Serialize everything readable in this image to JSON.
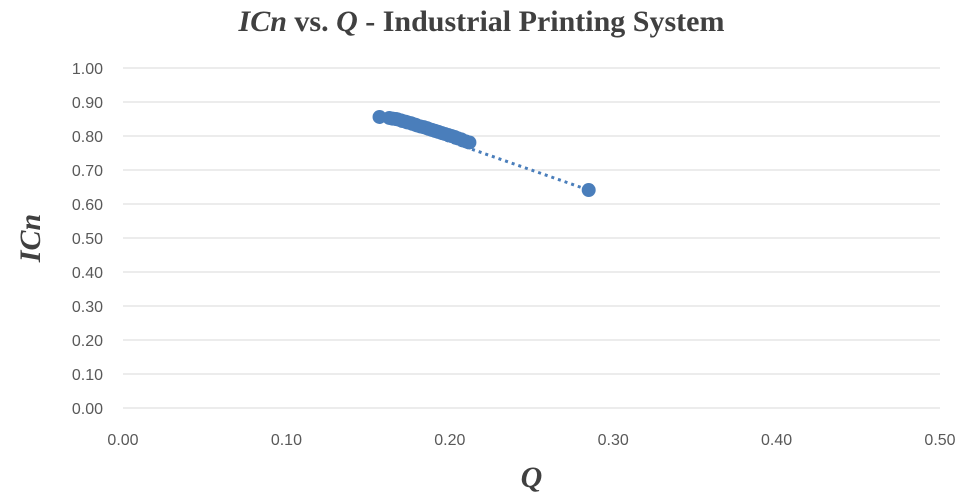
{
  "chart_data": {
    "type": "scatter",
    "title": {
      "x_symbol": "ICn",
      "vs": " vs. ",
      "y_symbol": "Q",
      "suffix": " - Industrial Printing System"
    },
    "xlabel": "Q",
    "ylabel": "ICn",
    "xlim": [
      0,
      0.5
    ],
    "ylim": [
      0,
      1
    ],
    "x_ticks": [
      "0.00",
      "0.10",
      "0.20",
      "0.30",
      "0.40",
      "0.50"
    ],
    "y_ticks": [
      "0.00",
      "0.10",
      "0.20",
      "0.30",
      "0.40",
      "0.50",
      "0.60",
      "0.70",
      "0.80",
      "0.90",
      "1.00"
    ],
    "grid": "horizontal",
    "marker_color": "#4a7ebb",
    "trendline": {
      "style": "dotted",
      "color": "#4a7ebb",
      "points": [
        [
          0.157,
          0.856
        ],
        [
          0.285,
          0.641
        ]
      ]
    },
    "points": [
      [
        0.157,
        0.856
      ],
      [
        0.163,
        0.853
      ],
      [
        0.165,
        0.851
      ],
      [
        0.167,
        0.85
      ],
      [
        0.168,
        0.849
      ],
      [
        0.17,
        0.846
      ],
      [
        0.171,
        0.844
      ],
      [
        0.173,
        0.842
      ],
      [
        0.174,
        0.84
      ],
      [
        0.176,
        0.838
      ],
      [
        0.177,
        0.836
      ],
      [
        0.179,
        0.833
      ],
      [
        0.18,
        0.831
      ],
      [
        0.182,
        0.828
      ],
      [
        0.184,
        0.826
      ],
      [
        0.186,
        0.823
      ],
      [
        0.187,
        0.821
      ],
      [
        0.189,
        0.818
      ],
      [
        0.191,
        0.815
      ],
      [
        0.193,
        0.812
      ],
      [
        0.195,
        0.809
      ],
      [
        0.197,
        0.806
      ],
      [
        0.199,
        0.803
      ],
      [
        0.201,
        0.8
      ],
      [
        0.203,
        0.797
      ],
      [
        0.205,
        0.793
      ],
      [
        0.207,
        0.79
      ],
      [
        0.208,
        0.787
      ],
      [
        0.21,
        0.784
      ],
      [
        0.212,
        0.781
      ],
      [
        0.285,
        0.641
      ]
    ]
  }
}
